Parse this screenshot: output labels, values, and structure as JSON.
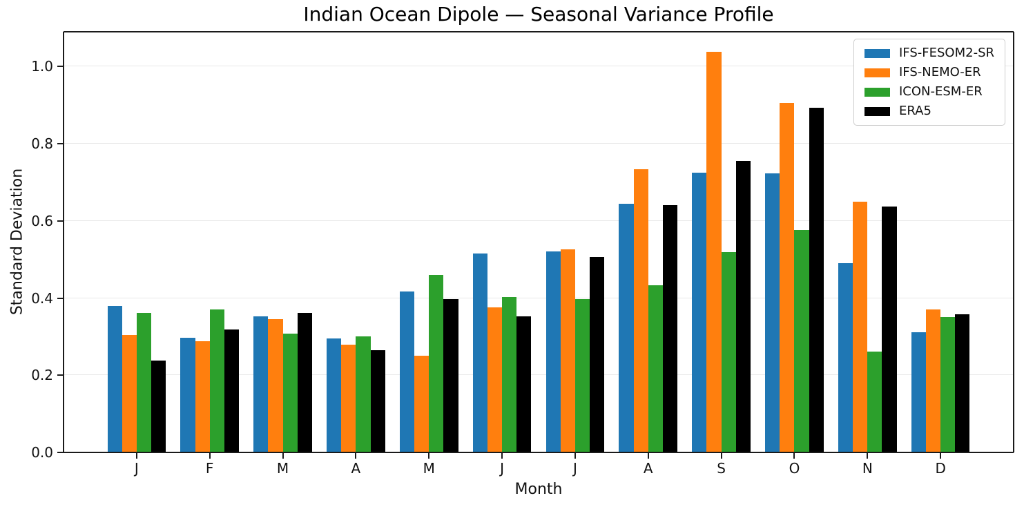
{
  "chart_data": {
    "type": "bar",
    "title": "Indian Ocean Dipole — Seasonal Variance Profile",
    "xlabel": "Month",
    "ylabel": "Standard Deviation",
    "categories": [
      "J",
      "F",
      "M",
      "A",
      "M",
      "J",
      "J",
      "A",
      "S",
      "O",
      "N",
      "D"
    ],
    "series": [
      {
        "name": "IFS-FESOM2-SR",
        "color": "#1f77b4",
        "values": [
          0.38,
          0.298,
          0.353,
          0.295,
          0.417,
          0.516,
          0.521,
          0.645,
          0.725,
          0.724,
          0.491,
          0.312
        ]
      },
      {
        "name": "IFS-NEMO-ER",
        "color": "#ff7f0e",
        "values": [
          0.305,
          0.289,
          0.346,
          0.279,
          0.251,
          0.376,
          0.527,
          0.734,
          1.038,
          0.905,
          0.649,
          0.37
        ]
      },
      {
        "name": "ICON-ESM-ER",
        "color": "#2ca02c",
        "values": [
          0.362,
          0.371,
          0.308,
          0.301,
          0.46,
          0.402,
          0.397,
          0.434,
          0.519,
          0.576,
          0.262,
          0.35
        ]
      },
      {
        "name": "ERA5",
        "color": "#000000",
        "values": [
          0.238,
          0.318,
          0.362,
          0.265,
          0.398,
          0.353,
          0.506,
          0.641,
          0.756,
          0.893,
          0.638,
          0.358
        ]
      }
    ],
    "yticks": [
      "0.0",
      "0.2",
      "0.4",
      "0.6",
      "0.8",
      "1.0"
    ],
    "ylim": [
      0,
      1.09
    ],
    "grid": "horizontal",
    "grid_color": "#e7e7e7",
    "spine_color": "#1a1a1a",
    "background": "#ffffff",
    "legend_position": "upper right",
    "bar_group_width": 0.8
  }
}
